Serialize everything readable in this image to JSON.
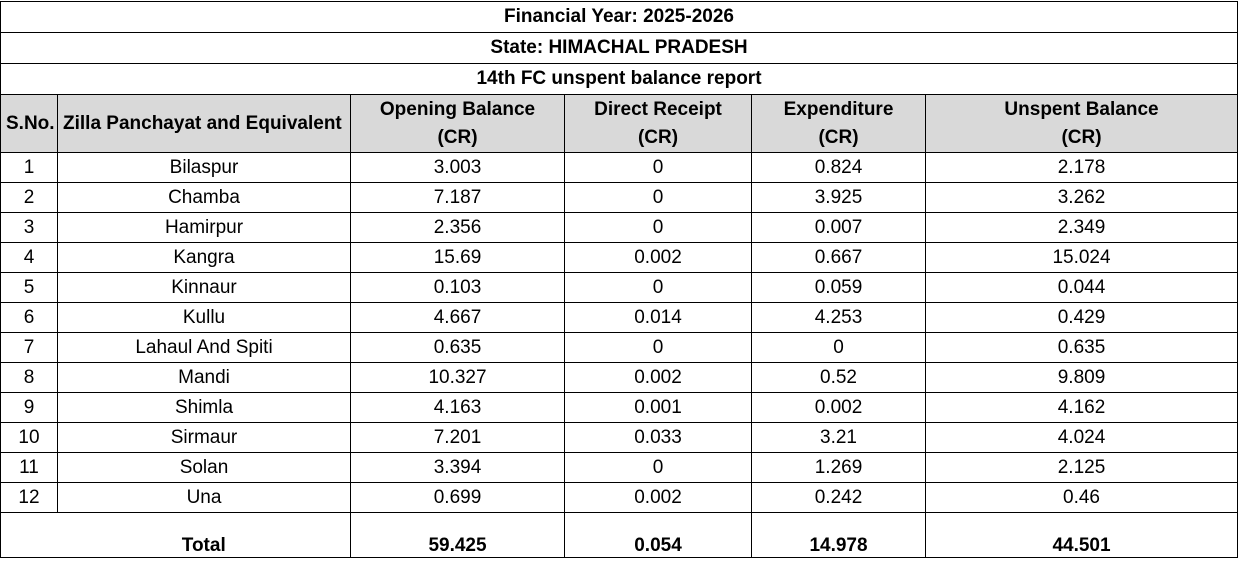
{
  "titles": {
    "financial_year": "Financial Year: 2025-2026",
    "state": "State: HIMACHAL PRADESH",
    "report": "14th FC unspent balance report"
  },
  "columns": {
    "sno": "S.No.",
    "zilla": "Zilla Panchayat and Equivalent",
    "opening_line1": "Opening Balance",
    "opening_line2": "(CR)",
    "receipt_line1": "Direct Receipt",
    "receipt_line2": "(CR)",
    "expenditure_line1": "Expenditure",
    "expenditure_line2": "(CR)",
    "unspent_line1": "Unspent Balance",
    "unspent_line2": "(CR)"
  },
  "rows": [
    {
      "sno": "1",
      "name": "Bilaspur",
      "opening": "3.003",
      "receipt": "0",
      "expenditure": "0.824",
      "unspent": "2.178"
    },
    {
      "sno": "2",
      "name": "Chamba",
      "opening": "7.187",
      "receipt": "0",
      "expenditure": "3.925",
      "unspent": "3.262"
    },
    {
      "sno": "3",
      "name": "Hamirpur",
      "opening": "2.356",
      "receipt": "0",
      "expenditure": "0.007",
      "unspent": "2.349"
    },
    {
      "sno": "4",
      "name": "Kangra",
      "opening": "15.69",
      "receipt": "0.002",
      "expenditure": "0.667",
      "unspent": "15.024"
    },
    {
      "sno": "5",
      "name": "Kinnaur",
      "opening": "0.103",
      "receipt": "0",
      "expenditure": "0.059",
      "unspent": "0.044"
    },
    {
      "sno": "6",
      "name": "Kullu",
      "opening": "4.667",
      "receipt": "0.014",
      "expenditure": "4.253",
      "unspent": "0.429"
    },
    {
      "sno": "7",
      "name": "Lahaul And Spiti",
      "opening": "0.635",
      "receipt": "0",
      "expenditure": "0",
      "unspent": "0.635"
    },
    {
      "sno": "8",
      "name": "Mandi",
      "opening": "10.327",
      "receipt": "0.002",
      "expenditure": "0.52",
      "unspent": "9.809"
    },
    {
      "sno": "9",
      "name": "Shimla",
      "opening": "4.163",
      "receipt": "0.001",
      "expenditure": "0.002",
      "unspent": "4.162"
    },
    {
      "sno": "10",
      "name": "Sirmaur",
      "opening": "7.201",
      "receipt": "0.033",
      "expenditure": "3.21",
      "unspent": "4.024"
    },
    {
      "sno": "11",
      "name": "Solan",
      "opening": "3.394",
      "receipt": "0",
      "expenditure": "1.269",
      "unspent": "2.125"
    },
    {
      "sno": "12",
      "name": "Una",
      "opening": "0.699",
      "receipt": "0.002",
      "expenditure": "0.242",
      "unspent": "0.46"
    }
  ],
  "total": {
    "label": "Total",
    "opening": "59.425",
    "receipt": "0.054",
    "expenditure": "14.978",
    "unspent": "44.501"
  }
}
